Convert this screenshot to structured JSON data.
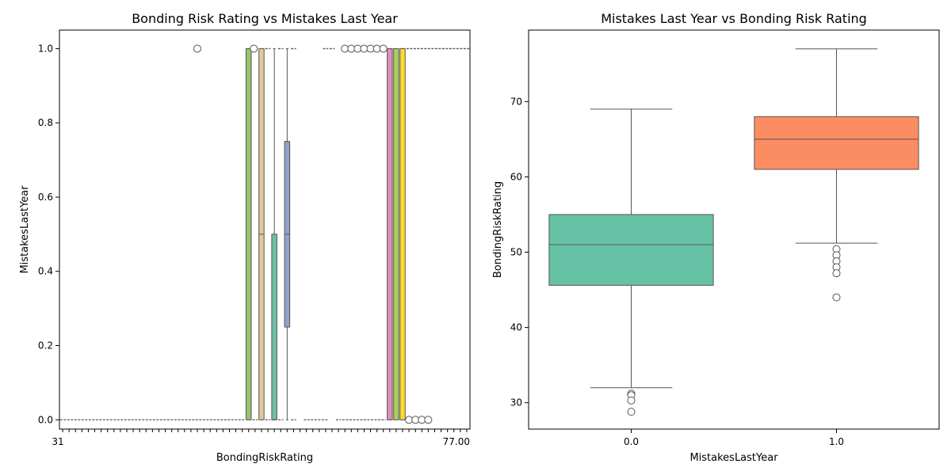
{
  "chart_data": [
    {
      "type": "box",
      "title": "Bonding Risk Rating vs Mistakes Last Year",
      "xlabel": "BondingRiskRating",
      "ylabel": "MistakesLastYear",
      "ylim": [
        -0.025,
        1.05
      ],
      "yticks": [
        "0.0",
        "0.2",
        "0.4",
        "0.6",
        "0.8",
        "1.0"
      ],
      "ytick_values": [
        0,
        0.2,
        0.4,
        0.6,
        0.8,
        1.0
      ],
      "xtick_first": "31",
      "xtick_last": "77.00",
      "category_count": 64,
      "boxes": [
        {
          "index": 29,
          "q1": 0,
          "median": 1,
          "q3": 1,
          "whislo": 0,
          "whishi": 1,
          "fliers": [],
          "color": "#98c46e"
        },
        {
          "index": 31,
          "q1": 0,
          "median": 0.5,
          "q3": 1,
          "whislo": 0,
          "whishi": 1,
          "fliers": [],
          "color": "#e2c79a"
        },
        {
          "index": 33,
          "q1": 0,
          "median": 0,
          "q3": 0.5,
          "whislo": 0,
          "whishi": 1,
          "fliers": [],
          "color": "#6fbfa4"
        },
        {
          "index": 35,
          "q1": 0.25,
          "median": 0.5,
          "q3": 0.75,
          "whislo": 0,
          "whishi": 1,
          "fliers": [],
          "color": "#91a3c9"
        },
        {
          "index": 51,
          "q1": 0,
          "median": 1,
          "q3": 1,
          "whislo": 0,
          "whishi": 1,
          "fliers": [],
          "color": "#e08ebf"
        },
        {
          "index": 52,
          "q1": 0,
          "median": 1,
          "q3": 1,
          "whislo": 0,
          "whishi": 1,
          "fliers": [],
          "color": "#a9d453"
        },
        {
          "index": 53,
          "q1": 0,
          "median": 1,
          "q3": 1,
          "whislo": 0,
          "whishi": 1,
          "fliers": [],
          "color": "#ffd92f"
        }
      ],
      "flat_zero_groups": [
        [
          0,
          28
        ],
        [
          30,
          30
        ],
        [
          32,
          32
        ],
        [
          34,
          34
        ],
        [
          36,
          36
        ],
        [
          38,
          41
        ],
        [
          43,
          43
        ],
        [
          44,
          50
        ]
      ],
      "flat_one_groups": [
        [
          32,
          32
        ],
        [
          34,
          34
        ],
        [
          36,
          36
        ],
        [
          41,
          41
        ],
        [
          42,
          42
        ],
        [
          54,
          63
        ]
      ],
      "outliers": [
        {
          "index": 21,
          "value": 1
        },
        {
          "index": 29.8,
          "value": 1
        },
        {
          "index": 44,
          "value": 1
        },
        {
          "index": 45,
          "value": 1
        },
        {
          "index": 46,
          "value": 1
        },
        {
          "index": 47,
          "value": 1
        },
        {
          "index": 48,
          "value": 1
        },
        {
          "index": 49,
          "value": 1
        },
        {
          "index": 50,
          "value": 1
        },
        {
          "index": 54,
          "value": 0
        },
        {
          "index": 55,
          "value": 0
        },
        {
          "index": 56,
          "value": 0
        },
        {
          "index": 57,
          "value": 0
        }
      ]
    },
    {
      "type": "box",
      "title": "Mistakes Last Year vs Bonding Risk Rating",
      "xlabel": "MistakesLastYear",
      "ylabel": "BondingRiskRating",
      "categories": [
        "0.0",
        "1.0"
      ],
      "ylim": [
        26.5,
        79.5
      ],
      "yticks": [
        "30",
        "40",
        "50",
        "60",
        "70"
      ],
      "ytick_values": [
        30,
        40,
        50,
        60,
        70
      ],
      "series": [
        {
          "category": "0.0",
          "whislo": 32,
          "q1": 45.6,
          "median": 51,
          "q3": 55,
          "whishi": 69,
          "fliers": [
            31.2,
            31.0,
            30.3,
            28.8
          ],
          "color": "#66c2a5"
        },
        {
          "category": "1.0",
          "whislo": 51.2,
          "q1": 61,
          "median": 65,
          "q3": 68,
          "whishi": 77,
          "fliers": [
            50.4,
            49.6,
            48.8,
            48.0,
            47.2,
            44.0
          ],
          "color": "#fc8d62"
        }
      ]
    }
  ]
}
